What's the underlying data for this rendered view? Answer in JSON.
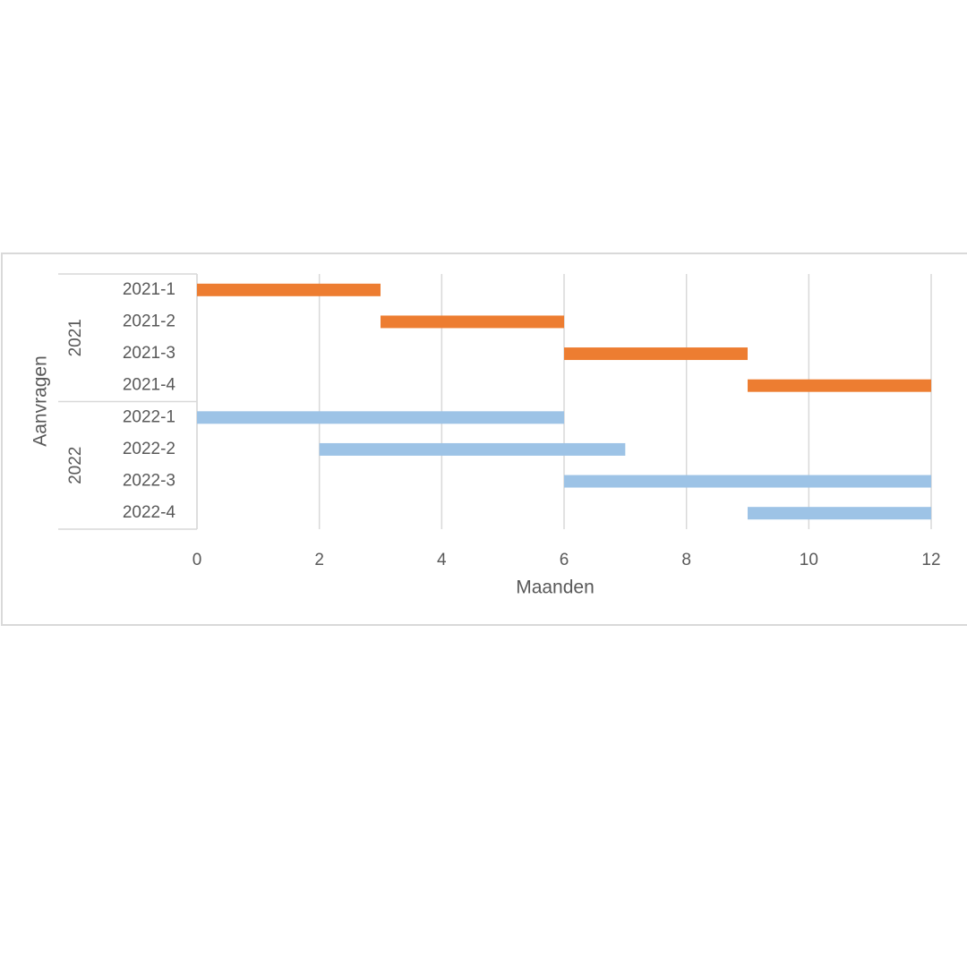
{
  "chart_data": {
    "type": "gantt",
    "groups": [
      {
        "name": "2021",
        "color": "#ed7d31",
        "categories": [
          "2021-1",
          "2021-2",
          "2021-3",
          "2021-4"
        ],
        "start": [
          0,
          3,
          6,
          9
        ],
        "end": [
          3,
          6,
          9,
          12
        ]
      },
      {
        "name": "2022",
        "color": "#9dc3e6",
        "categories": [
          "2022-1",
          "2022-2",
          "2022-3",
          "2022-4"
        ],
        "start": [
          0,
          2,
          6,
          9
        ],
        "end": [
          6,
          7,
          12,
          12
        ]
      }
    ],
    "xlabel": "Maanden",
    "ylabel": "Aanvragen",
    "xlim": [
      0,
      12
    ],
    "xticks": [
      0,
      2,
      4,
      6,
      8,
      10,
      12
    ],
    "grid": true
  }
}
